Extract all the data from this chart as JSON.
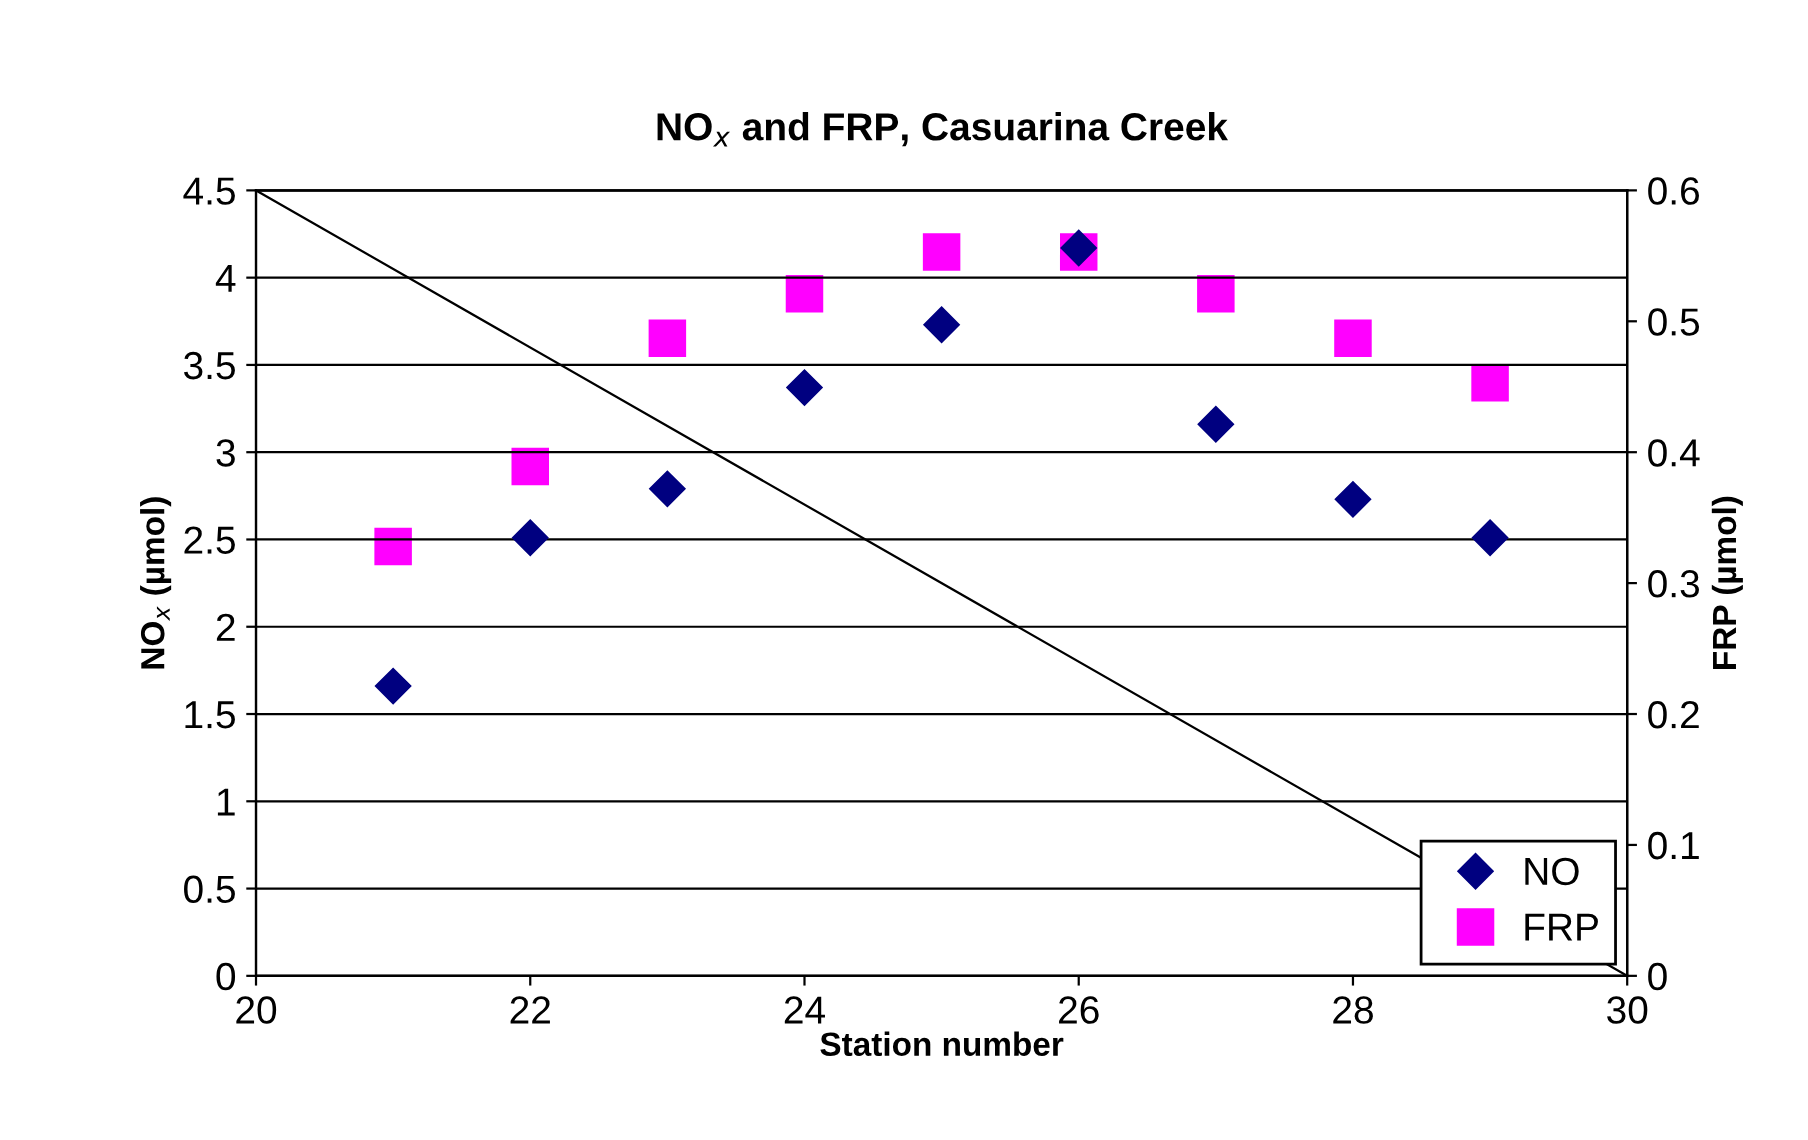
{
  "chart_data": {
    "type": "scatter",
    "title": "NO$_{x}$ and FRP, Casuarina Creek",
    "xlabel": "Station number",
    "ylabel": "NO$_{x}$ (µmol)",
    "y2label": "FRP (µmol)",
    "series": [
      {
        "name": "NO",
        "marker": "diamond",
        "color": "#000080",
        "x": [
          21,
          22,
          23,
          24,
          25,
          26,
          27,
          28,
          29
        ],
        "values": [
          1.66,
          2.51,
          2.79,
          3.37,
          3.73,
          4.17,
          3.16,
          2.73,
          2.51
        ]
      },
      {
        "name": "FRP",
        "marker": "square",
        "color": "#ff00ff",
        "axis": "y2",
        "x": [
          21,
          22,
          23,
          24,
          25,
          26,
          27,
          28,
          29
        ],
        "values": [
          0.328,
          0.389,
          0.487,
          0.521,
          0.553,
          0.553,
          0.521,
          0.487,
          0.453
        ]
      },
      {
        "type": "line",
        "color": "#000000",
        "marker": "none",
        "x": [
          20,
          30
        ],
        "values": [
          4.5,
          0
        ]
      }
    ],
    "xlim": [
      20,
      30
    ],
    "xticks": [
      20,
      22,
      24,
      26,
      28,
      30
    ],
    "ylim": [
      0,
      4.5
    ],
    "yticks": [
      0,
      0.5,
      1,
      1.5,
      2,
      2.5,
      3,
      3.5,
      4,
      4.5
    ],
    "y2lim": [
      0,
      0.6
    ],
    "y2ticks": [
      0,
      0.1,
      0.2,
      0.3,
      0.4,
      0.5,
      0.6
    ],
    "grid": "y",
    "legend": "bottom right"
  }
}
